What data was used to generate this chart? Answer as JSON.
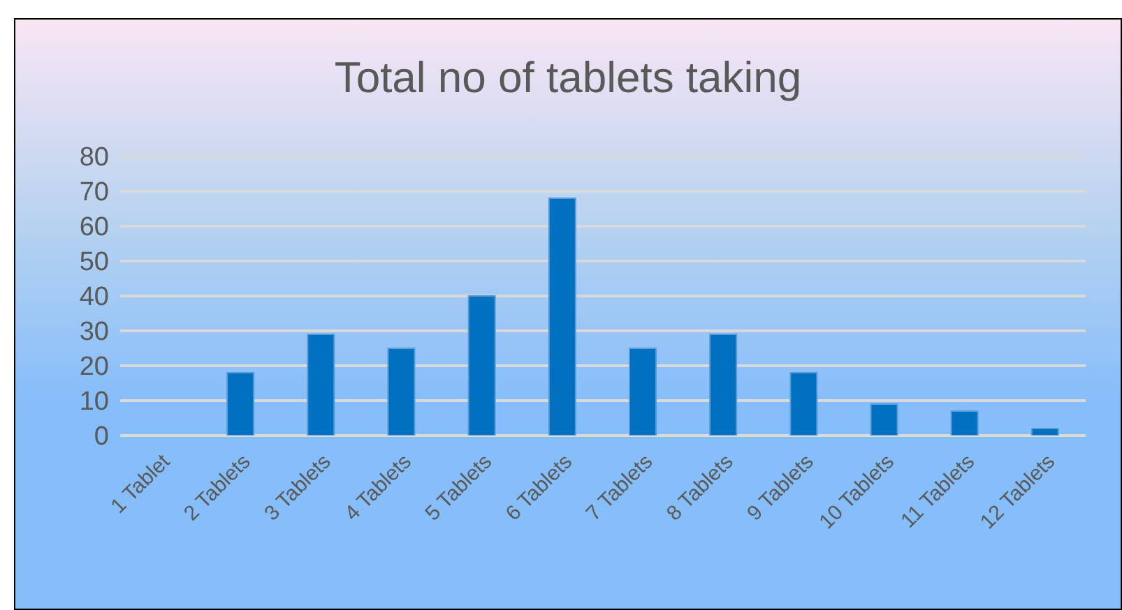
{
  "chart_data": {
    "type": "bar",
    "title": "Total no of tablets taking",
    "categories": [
      "1 Tablet",
      "2 Tablets",
      "3 Tablets",
      "4 Tablets",
      "5 Tablets",
      "6 Tablets",
      "7 Tablets",
      "8 Tablets",
      "9 Tablets",
      "10 Tablets",
      "11 Tablets",
      "12 Tablets"
    ],
    "values": [
      0,
      18,
      29,
      25,
      40,
      68,
      25,
      29,
      18,
      9,
      7,
      2
    ],
    "color": "#0070c0",
    "ylim": [
      0,
      80
    ],
    "yticks": [
      0,
      10,
      20,
      30,
      40,
      50,
      60,
      70,
      80
    ],
    "grid": "y",
    "legend": false
  }
}
